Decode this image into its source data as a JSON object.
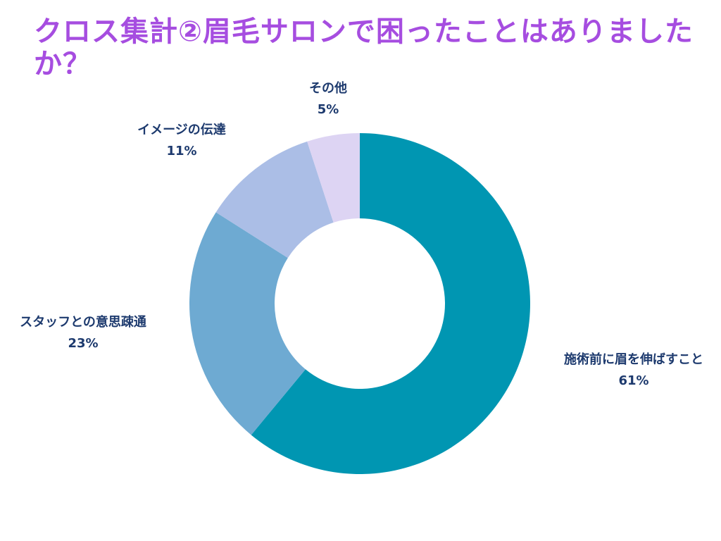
{
  "title": "クロス集計②眉毛サロンで困ったことはありましたか？",
  "chart_data": {
    "type": "pie",
    "donut": true,
    "title": "クロス集計②眉毛サロンで困ったことはありましたか？",
    "categories": [
      "施術前に眉を伸ばすこと",
      "スタッフとの意思疎通",
      "イメージの伝達",
      "その他"
    ],
    "values": [
      61,
      23,
      11,
      5
    ],
    "value_labels": [
      "61%",
      "23%",
      "11%",
      "5%"
    ],
    "colors": [
      "#0096b2",
      "#6eaad2",
      "#abbee6",
      "#ddd4f3"
    ],
    "legend": "none"
  }
}
